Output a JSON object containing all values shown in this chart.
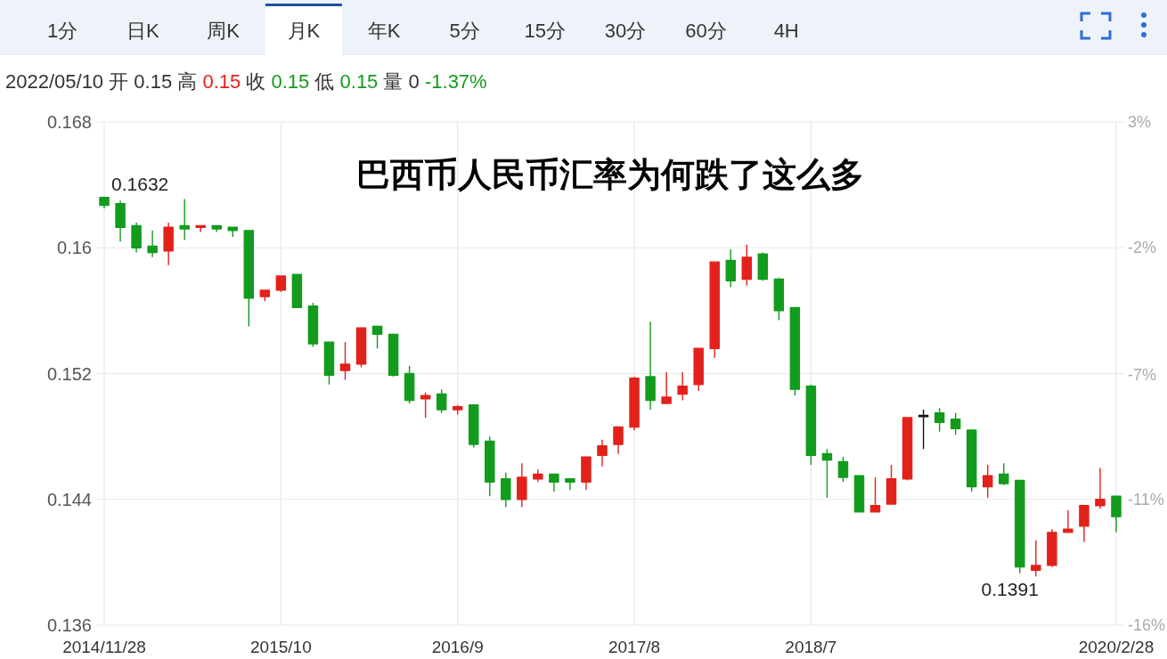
{
  "chart_data": {
    "type": "candlestick",
    "title": "巴西币人民币汇率为何跌了这么多",
    "subtitle": "2022/05/10 开 0.15 高 0.15 收 0.15 低 0.15 量 0 -1.37%",
    "categories": [
      "2014/11/28",
      null,
      null,
      null,
      null,
      null,
      null,
      null,
      null,
      null,
      null,
      "2015/10",
      null,
      null,
      null,
      null,
      null,
      null,
      null,
      null,
      null,
      null,
      "2016/9",
      null,
      null,
      null,
      null,
      null,
      null,
      null,
      null,
      null,
      null,
      "2017/8",
      null,
      null,
      null,
      null,
      null,
      null,
      null,
      null,
      null,
      null,
      "2018/7",
      null,
      null,
      null,
      null,
      null,
      null,
      null,
      null,
      null,
      null,
      null,
      null,
      null,
      null,
      null,
      null,
      null,
      null,
      "2020/2/28"
    ],
    "ohlc": [
      [
        0.1632,
        0.1632,
        0.1625,
        0.1627
      ],
      [
        0.1628,
        0.163,
        0.1604,
        0.1613
      ],
      [
        0.1614,
        0.1616,
        0.1597,
        0.16
      ],
      [
        0.1601,
        0.1611,
        0.1594,
        0.1597
      ],
      [
        0.1598,
        0.1616,
        0.1589,
        0.1613
      ],
      [
        0.1614,
        0.1631,
        0.1605,
        0.1612
      ],
      [
        0.1613,
        0.1614,
        0.161,
        0.1614
      ],
      [
        0.1614,
        0.1614,
        0.161,
        0.1612
      ],
      [
        0.1613,
        0.1613,
        0.1607,
        0.1611
      ],
      [
        0.1611,
        0.1611,
        0.155,
        0.1568
      ],
      [
        0.1569,
        0.1573,
        0.1566,
        0.1573
      ],
      [
        0.1573,
        0.1582,
        0.1572,
        0.1582
      ],
      [
        0.1583,
        0.1583,
        0.1562,
        0.1562
      ],
      [
        0.1563,
        0.1565,
        0.1537,
        0.1539
      ],
      [
        0.154,
        0.154,
        0.1513,
        0.1519
      ],
      [
        0.1522,
        0.154,
        0.1516,
        0.1526
      ],
      [
        0.1526,
        0.1549,
        0.1524,
        0.1549
      ],
      [
        0.155,
        0.155,
        0.1536,
        0.1545
      ],
      [
        0.1545,
        0.1545,
        0.1518,
        0.1519
      ],
      [
        0.152,
        0.1525,
        0.1501,
        0.1503
      ],
      [
        0.1504,
        0.1508,
        0.1492,
        0.1506
      ],
      [
        0.1507,
        0.151,
        0.1495,
        0.1497
      ],
      [
        0.1497,
        0.15,
        0.1494,
        0.1499
      ],
      [
        0.15,
        0.15,
        0.1473,
        0.1475
      ],
      [
        0.1477,
        0.148,
        0.1442,
        0.1451
      ],
      [
        0.1453,
        0.1457,
        0.1435,
        0.144
      ],
      [
        0.144,
        0.1463,
        0.1435,
        0.1454
      ],
      [
        0.1453,
        0.1459,
        0.1451,
        0.1456
      ],
      [
        0.1456,
        0.1456,
        0.1445,
        0.1451
      ],
      [
        0.1453,
        0.1453,
        0.1446,
        0.1451
      ],
      [
        0.1451,
        0.1467,
        0.1446,
        0.1467
      ],
      [
        0.1468,
        0.1478,
        0.1461,
        0.1474
      ],
      [
        0.1475,
        0.1486,
        0.1469,
        0.1486
      ],
      [
        0.1486,
        0.1518,
        0.1484,
        0.1517
      ],
      [
        0.1518,
        0.1553,
        0.1497,
        0.1503
      ],
      [
        0.1501,
        0.1521,
        0.1501,
        0.1505
      ],
      [
        0.1507,
        0.1521,
        0.1503,
        0.1512
      ],
      [
        0.1513,
        0.1536,
        0.1509,
        0.1536
      ],
      [
        0.1536,
        0.1591,
        0.153,
        0.1591
      ],
      [
        0.1592,
        0.1599,
        0.1575,
        0.1579
      ],
      [
        0.158,
        0.1602,
        0.1576,
        0.1594
      ],
      [
        0.1596,
        0.1597,
        0.1579,
        0.158
      ],
      [
        0.158,
        0.1581,
        0.1554,
        0.156
      ],
      [
        0.1562,
        0.1562,
        0.1506,
        0.151
      ],
      [
        0.1512,
        0.1513,
        0.1462,
        0.1468
      ],
      [
        0.1469,
        0.1472,
        0.1441,
        0.1465
      ],
      [
        0.1464,
        0.1467,
        0.1451,
        0.1454
      ],
      [
        0.1455,
        0.1455,
        0.1432,
        0.1432
      ],
      [
        0.1432,
        0.1454,
        0.1432,
        0.1436
      ],
      [
        0.1437,
        0.1462,
        0.1437,
        0.1453
      ],
      [
        0.1453,
        0.1492,
        0.1452,
        0.1492
      ],
      [
        0.1493,
        0.1497,
        0.1472,
        0.1493
      ],
      [
        0.1495,
        0.1498,
        0.1483,
        0.1489
      ],
      [
        0.1491,
        0.1495,
        0.1481,
        0.1485
      ],
      [
        0.1484,
        0.1484,
        0.1445,
        0.1448
      ],
      [
        0.1448,
        0.1462,
        0.1441,
        0.1455
      ],
      [
        0.1456,
        0.1463,
        0.1449,
        0.145
      ],
      [
        0.1452,
        0.1452,
        0.1393,
        0.1397
      ],
      [
        0.1395,
        0.1414,
        0.1391,
        0.1398
      ],
      [
        0.1398,
        0.1421,
        0.1397,
        0.1419
      ],
      [
        0.1419,
        0.1433,
        0.1419,
        0.1421
      ],
      [
        0.1423,
        0.1436,
        0.1413,
        0.1436
      ],
      [
        0.1436,
        0.146,
        0.1434,
        0.144
      ],
      [
        0.1442,
        0.1442,
        0.1419,
        0.1429
      ]
    ],
    "colors": [
      "#139b1d",
      "#139b1d",
      "#139b1d",
      "#139b1d",
      "#e3211b",
      "#139b1d",
      "#e3211b",
      "#139b1d",
      "#139b1d",
      "#139b1d",
      "#e3211b",
      "#e3211b",
      "#139b1d",
      "#139b1d",
      "#139b1d",
      "#e3211b",
      "#e3211b",
      "#139b1d",
      "#139b1d",
      "#139b1d",
      "#e3211b",
      "#139b1d",
      "#e3211b",
      "#139b1d",
      "#139b1d",
      "#139b1d",
      "#e3211b",
      "#e3211b",
      "#139b1d",
      "#139b1d",
      "#e3211b",
      "#e3211b",
      "#e3211b",
      "#e3211b",
      "#139b1d",
      "#e3211b",
      "#e3211b",
      "#e3211b",
      "#e3211b",
      "#139b1d",
      "#e3211b",
      "#139b1d",
      "#139b1d",
      "#139b1d",
      "#139b1d",
      "#139b1d",
      "#139b1d",
      "#139b1d",
      "#e3211b",
      "#e3211b",
      "#e3211b",
      "#111111",
      "#139b1d",
      "#139b1d",
      "#139b1d",
      "#e3211b",
      "#139b1d",
      "#139b1d",
      "#e3211b",
      "#e3211b",
      "#e3211b",
      "#e3211b",
      "#e3211b",
      "#139b1d"
    ],
    "ylim": [
      0.136,
      0.168
    ],
    "yticks": [
      0.168,
      0.16,
      0.152,
      0.144,
      0.136
    ],
    "y2lim": [
      -16.3,
      3.4
    ],
    "y2ticks": [
      {
        "value": 3.4,
        "label": "3%"
      },
      {
        "value": -1.5,
        "label": "-2%"
      },
      {
        "value": -6.5,
        "label": "-7%"
      },
      {
        "value": -11.4,
        "label": "-11%"
      },
      {
        "value": -16.3,
        "label": "-16%"
      }
    ],
    "grid": true,
    "annotations": [
      "1分",
      "日K",
      "周K",
      "月K",
      "年K",
      "5分",
      "15分",
      "30分",
      "60分",
      "4H",
      {
        "text": "0.1632",
        "x": "2014/11/28",
        "y": 0.1632
      },
      "0.1391"
    ]
  }
}
